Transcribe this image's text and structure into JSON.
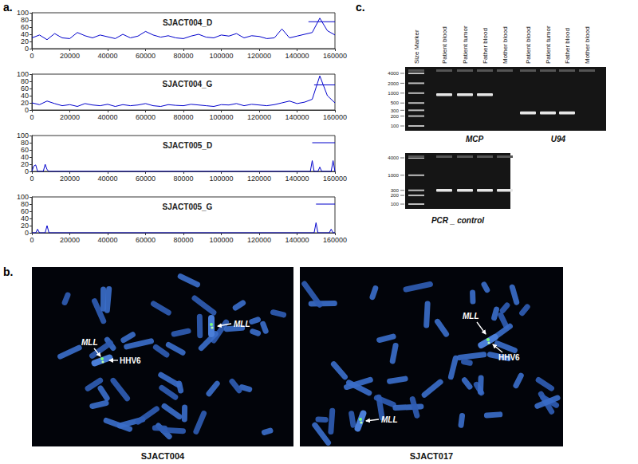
{
  "panel_labels": {
    "a": "a.",
    "b": "b.",
    "c": "c."
  },
  "chart_data": [
    {
      "type": "line",
      "title": "SJACT004_D",
      "color": "#0000cc",
      "x": [
        0,
        4000,
        8000,
        12000,
        16000,
        20000,
        24000,
        28000,
        32000,
        36000,
        40000,
        44000,
        48000,
        52000,
        56000,
        60000,
        64000,
        68000,
        72000,
        76000,
        80000,
        84000,
        88000,
        92000,
        96000,
        100000,
        104000,
        108000,
        112000,
        116000,
        120000,
        124000,
        128000,
        132000,
        136000,
        140000,
        144000,
        148000,
        152000,
        156000,
        160000
      ],
      "values": [
        30,
        38,
        25,
        42,
        30,
        28,
        45,
        36,
        30,
        38,
        33,
        28,
        40,
        30,
        35,
        48,
        38,
        32,
        36,
        30,
        28,
        35,
        40,
        32,
        30,
        38,
        35,
        42,
        30,
        36,
        34,
        28,
        30,
        55,
        30,
        35,
        40,
        45,
        85,
        50,
        38
      ],
      "segment": {
        "x": [
          146000,
          160000
        ],
        "y": 75
      },
      "xlim": [
        0,
        160000
      ],
      "xticks": [
        0,
        20000,
        40000,
        60000,
        80000,
        100000,
        120000,
        140000,
        160000
      ],
      "ylim": [
        0,
        100
      ],
      "yticks": [
        0,
        20,
        40,
        60,
        80,
        100
      ],
      "grid": false
    },
    {
      "type": "line",
      "title": "SJACT004_G",
      "color": "#0000cc",
      "x": [
        0,
        4000,
        8000,
        12000,
        16000,
        20000,
        24000,
        28000,
        32000,
        36000,
        40000,
        44000,
        48000,
        52000,
        56000,
        60000,
        64000,
        68000,
        72000,
        76000,
        80000,
        84000,
        88000,
        92000,
        96000,
        100000,
        104000,
        108000,
        112000,
        116000,
        120000,
        124000,
        128000,
        132000,
        136000,
        140000,
        144000,
        148000,
        152000,
        156000,
        160000
      ],
      "values": [
        20,
        15,
        25,
        18,
        12,
        15,
        10,
        18,
        14,
        12,
        16,
        10,
        15,
        12,
        14,
        18,
        12,
        10,
        15,
        13,
        12,
        16,
        14,
        12,
        10,
        15,
        14,
        18,
        12,
        16,
        14,
        12,
        15,
        20,
        25,
        18,
        22,
        30,
        95,
        40,
        20
      ],
      "segment": {
        "x": [
          149000,
          160000
        ],
        "y": 70
      },
      "xlim": [
        0,
        160000
      ],
      "xticks": [
        0,
        20000,
        40000,
        60000,
        80000,
        100000,
        120000,
        140000,
        160000
      ],
      "ylim": [
        0,
        100
      ],
      "yticks": [
        0,
        20,
        40,
        60,
        80,
        100
      ],
      "grid": false
    },
    {
      "type": "line",
      "title": "SJACT005_D",
      "color": "#0000cc",
      "x": [
        0,
        1000,
        2000,
        3000,
        6000,
        7000,
        8000,
        9000,
        147000,
        148000,
        149000,
        151000,
        152000,
        153000,
        158000,
        159000,
        160000
      ],
      "values": [
        0,
        15,
        18,
        0,
        0,
        20,
        5,
        0,
        0,
        30,
        0,
        0,
        12,
        0,
        0,
        30,
        0
      ],
      "segment": {
        "x": [
          148000,
          160000
        ],
        "y": 80
      },
      "xlim": [
        0,
        160000
      ],
      "xticks": [
        0,
        20000,
        40000,
        60000,
        80000,
        100000,
        120000,
        140000,
        160000
      ],
      "ylim": [
        0,
        100
      ],
      "yticks": [
        0,
        20,
        40,
        60,
        80,
        100
      ],
      "grid": false
    },
    {
      "type": "line",
      "title": "SJACT005_G",
      "color": "#0000cc",
      "x": [
        0,
        2000,
        3000,
        4000,
        7000,
        8000,
        9000,
        149000,
        150000,
        151000,
        157000,
        158000,
        159000,
        160000
      ],
      "values": [
        0,
        0,
        10,
        0,
        0,
        20,
        0,
        0,
        28,
        0,
        0,
        10,
        0,
        0
      ],
      "segment": {
        "x": [
          150000,
          160000
        ],
        "y": 80
      },
      "xlim": [
        0,
        160000
      ],
      "xticks": [
        0,
        20000,
        40000,
        60000,
        80000,
        100000,
        120000,
        140000,
        160000
      ],
      "ylim": [
        0,
        100
      ],
      "yticks": [
        0,
        20,
        40,
        60,
        80,
        100
      ],
      "grid": false
    }
  ],
  "fish": {
    "images": [
      {
        "caption": "SJACT004",
        "labels": [
          "MLL",
          "MLL",
          "HHV6"
        ]
      },
      {
        "caption": "SJACT017",
        "labels": [
          "MLL",
          "HHV6",
          "MLL"
        ]
      }
    ]
  },
  "gel": {
    "lane_labels": [
      "Size Marker",
      "Patient blood",
      "Patient tumor",
      "Father blood",
      "Mother blood",
      "Patient blood",
      "Patient tumor",
      "Father blood",
      "Mother blood"
    ],
    "top": {
      "ladder": [
        4000,
        2000,
        1000,
        500,
        300,
        200,
        100
      ],
      "groups": [
        {
          "name": "MCP",
          "band_bp": 900,
          "bands": [
            true,
            true,
            true,
            false
          ]
        },
        {
          "name": "U94",
          "band_bp": 250,
          "bands": [
            true,
            true,
            true,
            false
          ]
        }
      ]
    },
    "bottom": {
      "title": "PCR _ control",
      "ladder": [
        4000,
        1000,
        300,
        200,
        100
      ],
      "groups": [
        {
          "band_bp": 300,
          "bands": [
            true,
            true,
            true,
            true
          ]
        }
      ]
    }
  }
}
